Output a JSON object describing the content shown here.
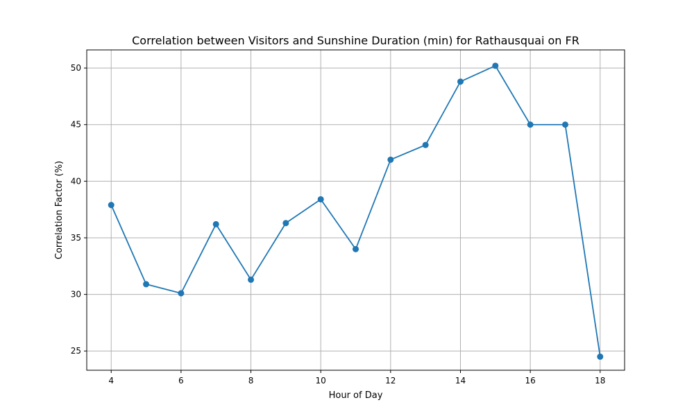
{
  "chart_data": {
    "type": "line",
    "title": "Correlation between Visitors and Sunshine Duration (min) for Rathausquai on FR",
    "xlabel": "Hour of Day",
    "ylabel": "Correlation Factor (%)",
    "xlim": [
      3.3,
      18.7
    ],
    "ylim": [
      23.3,
      51.6
    ],
    "xticks": [
      4,
      6,
      8,
      10,
      12,
      14,
      16,
      18
    ],
    "yticks": [
      25,
      30,
      35,
      40,
      45,
      50
    ],
    "grid": true,
    "series": [
      {
        "color": "#1f77b4",
        "marker": "circle",
        "x": [
          4,
          5,
          6,
          7,
          8,
          9,
          10,
          11,
          12,
          13,
          14,
          15,
          16,
          17,
          18
        ],
        "values": [
          37.9,
          30.9,
          30.1,
          36.2,
          31.3,
          36.3,
          38.4,
          34.0,
          41.9,
          43.2,
          48.8,
          50.2,
          45.0,
          45.0,
          24.5
        ]
      }
    ]
  }
}
